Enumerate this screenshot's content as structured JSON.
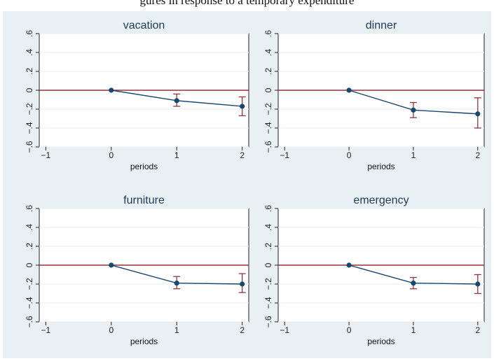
{
  "caption": "gures in response to a temporary expenditure",
  "chart_data": [
    {
      "type": "line",
      "title": "vacation",
      "xlabel": "periods",
      "ylabel": "",
      "xlim": [
        -1.1,
        2.1
      ],
      "ylim": [
        -0.6,
        0.6
      ],
      "xticks": [
        -1,
        0,
        1,
        2
      ],
      "xtick_labels": [
        "−1",
        "0",
        "1",
        "2"
      ],
      "yticks": [
        -0.6,
        -0.4,
        -0.2,
        0,
        0.2,
        0.4,
        0.6
      ],
      "ytick_labels": [
        "−.6",
        "−.4",
        "−.2",
        "0",
        ".2",
        ".4",
        ".6"
      ],
      "x": [
        0,
        1,
        2
      ],
      "y": [
        0,
        -0.11,
        -0.17
      ],
      "ci_low": [
        0,
        -0.17,
        -0.27
      ],
      "ci_high": [
        0,
        -0.04,
        -0.07
      ],
      "reference_line": 0
    },
    {
      "type": "line",
      "title": "dinner",
      "xlabel": "periods",
      "ylabel": "",
      "xlim": [
        -1.1,
        2.1
      ],
      "ylim": [
        -0.6,
        0.6
      ],
      "xticks": [
        -1,
        0,
        1,
        2
      ],
      "xtick_labels": [
        "−1",
        "0",
        "1",
        "2"
      ],
      "yticks": [
        -0.6,
        -0.4,
        -0.2,
        0,
        0.2,
        0.4,
        0.6
      ],
      "ytick_labels": [
        "−.6",
        "−.4",
        "−.2",
        "0",
        ".2",
        ".4",
        ".6"
      ],
      "x": [
        0,
        1,
        2
      ],
      "y": [
        0,
        -0.21,
        -0.25
      ],
      "ci_low": [
        0,
        -0.29,
        -0.4
      ],
      "ci_high": [
        0,
        -0.13,
        -0.08
      ],
      "reference_line": 0
    },
    {
      "type": "line",
      "title": "furniture",
      "xlabel": "periods",
      "ylabel": "",
      "xlim": [
        -1.1,
        2.1
      ],
      "ylim": [
        -0.6,
        0.6
      ],
      "xticks": [
        -1,
        0,
        1,
        2
      ],
      "xtick_labels": [
        "−1",
        "0",
        "1",
        "2"
      ],
      "yticks": [
        -0.6,
        -0.4,
        -0.2,
        0,
        0.2,
        0.4,
        0.6
      ],
      "ytick_labels": [
        "−.6",
        "−.4",
        "−.2",
        "0",
        ".2",
        ".4",
        ".6"
      ],
      "x": [
        0,
        1,
        2
      ],
      "y": [
        0,
        -0.19,
        -0.2
      ],
      "ci_low": [
        0,
        -0.25,
        -0.29
      ],
      "ci_high": [
        0,
        -0.12,
        -0.09
      ],
      "reference_line": 0
    },
    {
      "type": "line",
      "title": "emergency",
      "xlabel": "periods",
      "ylabel": "",
      "xlim": [
        -1.1,
        2.1
      ],
      "ylim": [
        -0.6,
        0.6
      ],
      "xticks": [
        -1,
        0,
        1,
        2
      ],
      "xtick_labels": [
        "−1",
        "0",
        "1",
        "2"
      ],
      "yticks": [
        -0.6,
        -0.4,
        -0.2,
        0,
        0.2,
        0.4,
        0.6
      ],
      "ytick_labels": [
        "−.6",
        "−.4",
        "−.2",
        "0",
        ".2",
        ".4",
        ".6"
      ],
      "x": [
        0,
        1,
        2
      ],
      "y": [
        0,
        -0.19,
        -0.2
      ],
      "ci_low": [
        0,
        -0.25,
        -0.3
      ],
      "ci_high": [
        0,
        -0.13,
        -0.1
      ],
      "reference_line": 0
    }
  ],
  "colors": {
    "background": "#e9f0f4",
    "plot_area": "#ffffff",
    "grid": "#e6eef2",
    "series_line": "#1a476f",
    "marker": "#1a476f",
    "ci": "#90353b",
    "reference_line": "#90353b",
    "title_text": "#1e3b5c"
  }
}
